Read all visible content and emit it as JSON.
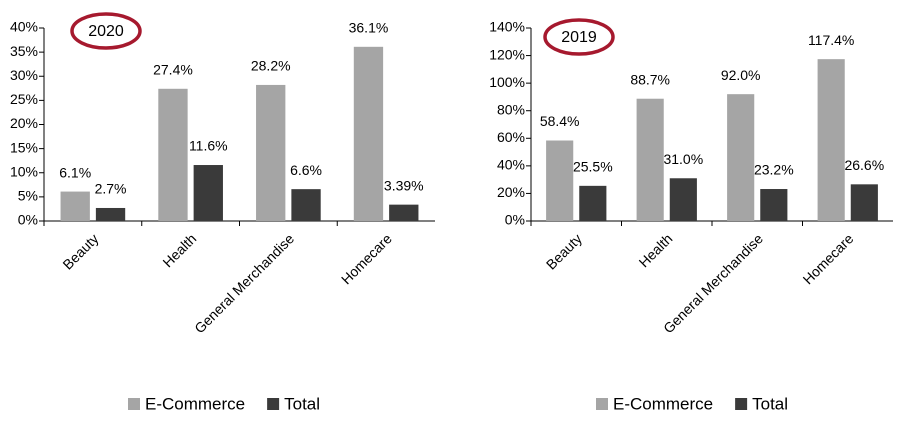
{
  "chart_data": [
    {
      "type": "bar",
      "title": "2020",
      "categories": [
        "Beauty",
        "Health",
        "General Merchandise",
        "Homecare"
      ],
      "series": [
        {
          "name": "E-Commerce",
          "color": "#a5a5a5",
          "values": [
            6.1,
            27.4,
            28.2,
            36.1
          ],
          "value_labels": [
            "6.1%",
            "27.4%",
            "28.2%",
            "36.1%"
          ]
        },
        {
          "name": "Total",
          "color": "#3a3a3a",
          "values": [
            2.7,
            11.6,
            6.6,
            3.39
          ],
          "value_labels": [
            "2.7%",
            "11.6%",
            "6.6%",
            "3.39%"
          ]
        }
      ],
      "ylim": [
        0,
        40
      ],
      "yticks": [
        {
          "value": 0,
          "label": "0%"
        },
        {
          "value": 5,
          "label": "5%"
        },
        {
          "value": 10,
          "label": "10%"
        },
        {
          "value": 15,
          "label": "15%"
        },
        {
          "value": 20,
          "label": "20%"
        },
        {
          "value": 25,
          "label": "25%"
        },
        {
          "value": 30,
          "label": "30%"
        },
        {
          "value": 35,
          "label": "35%"
        },
        {
          "value": 40,
          "label": "40%"
        }
      ],
      "legend": "bottom"
    },
    {
      "type": "bar",
      "title": "2019",
      "categories": [
        "Beauty",
        "Health",
        "General Merchandise",
        "Homecare"
      ],
      "series": [
        {
          "name": "E-Commerce",
          "color": "#a5a5a5",
          "values": [
            58.4,
            88.7,
            92.0,
            117.4
          ],
          "value_labels": [
            "58.4%",
            "88.7%",
            "92.0%",
            "117.4%"
          ]
        },
        {
          "name": "Total",
          "color": "#3a3a3a",
          "values": [
            25.5,
            31.0,
            23.2,
            26.6
          ],
          "value_labels": [
            "25.5%",
            "31.0%",
            "23.2%",
            "26.6%"
          ]
        }
      ],
      "ylim": [
        0,
        140
      ],
      "yticks": [
        {
          "value": 0,
          "label": "0%"
        },
        {
          "value": 20,
          "label": "20%"
        },
        {
          "value": 40,
          "label": "40%"
        },
        {
          "value": 60,
          "label": "60%"
        },
        {
          "value": 80,
          "label": "80%"
        },
        {
          "value": 100,
          "label": "100%"
        },
        {
          "value": 120,
          "label": "120%"
        },
        {
          "value": 140,
          "label": "140%"
        }
      ],
      "legend": "bottom"
    }
  ]
}
